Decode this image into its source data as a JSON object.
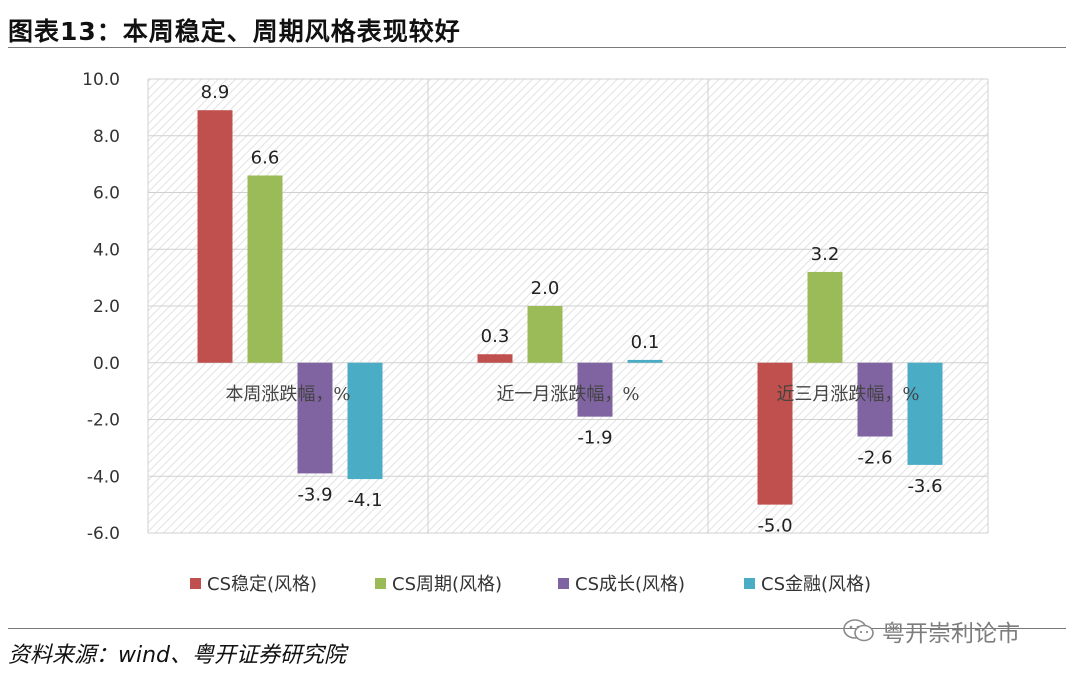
{
  "header": {
    "title": "图表13：本周稳定、周期风格表现较好"
  },
  "footer": {
    "source": "资料来源：wind、粤开证券研究院",
    "watermark": "粤开崇利论市"
  },
  "chart_data": {
    "type": "bar",
    "categories": [
      "本周涨跌幅，%",
      "近一月涨跌幅，%",
      "近三月涨跌幅，%"
    ],
    "series": [
      {
        "name": "CS稳定(风格)",
        "color": "#c0504d",
        "values": [
          8.9,
          0.3,
          -5.0
        ]
      },
      {
        "name": "CS周期(风格)",
        "color": "#9bbb59",
        "values": [
          6.6,
          2.0,
          3.2
        ]
      },
      {
        "name": "CS成长(风格)",
        "color": "#8064a2",
        "values": [
          -3.9,
          -1.9,
          -2.6
        ]
      },
      {
        "name": "CS金融(风格)",
        "color": "#4bacc6",
        "values": [
          -4.1,
          0.1,
          -3.6
        ]
      }
    ],
    "ylim": [
      -6.0,
      10.0
    ],
    "yticks": [
      10.0,
      8.0,
      6.0,
      4.0,
      2.0,
      0.0,
      -2.0,
      -4.0,
      -6.0
    ],
    "ytick_labels": [
      "10.0",
      "8.0",
      "6.0",
      "4.0",
      "2.0",
      "0.0",
      "-2.0",
      "-4.0",
      "-6.0"
    ],
    "grid": true,
    "legend": "bottom",
    "title": "",
    "xlabel": "",
    "ylabel": ""
  }
}
